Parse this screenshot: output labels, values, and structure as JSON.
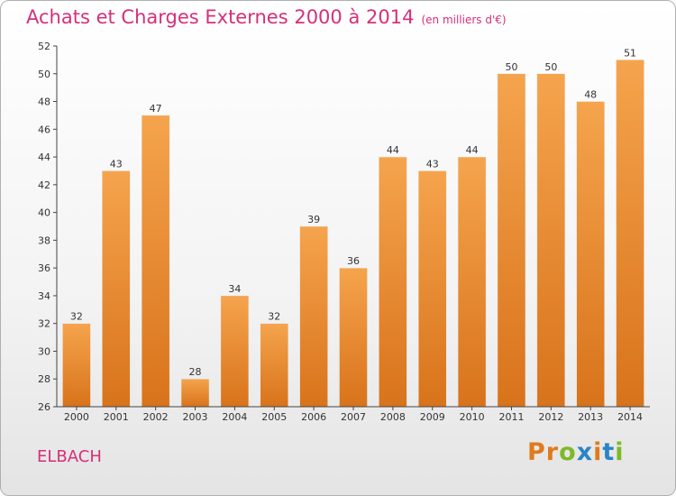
{
  "header": {
    "title": "Achats et Charges Externes 2000 à 2014",
    "subtitle": "(en milliers d'€)"
  },
  "commune": "ELBACH",
  "logo": {
    "letters": [
      "P",
      "r",
      "o",
      "x",
      "i",
      "t",
      "i"
    ],
    "colors": [
      "#e07a1e",
      "#e07a1e",
      "#7db928",
      "#2a84c6",
      "#e07a1e",
      "#2a84c6",
      "#7db928"
    ]
  },
  "chart_data": {
    "type": "bar",
    "title": "Achats et Charges Externes 2000 à 2014",
    "subtitle": "(en milliers d'€)",
    "categories": [
      "2000",
      "2001",
      "2002",
      "2003",
      "2004",
      "2005",
      "2006",
      "2007",
      "2008",
      "2009",
      "2010",
      "2011",
      "2012",
      "2013",
      "2014"
    ],
    "values": [
      32,
      43,
      47,
      28,
      34,
      32,
      39,
      36,
      44,
      43,
      44,
      50,
      50,
      48,
      51
    ],
    "ylim": [
      26,
      52
    ],
    "yticks": [
      26,
      28,
      30,
      32,
      34,
      36,
      38,
      40,
      42,
      44,
      46,
      48,
      50,
      52
    ],
    "grid": false,
    "bar_color": "#f09a3e",
    "bar_color_dark": "#d8731b"
  }
}
